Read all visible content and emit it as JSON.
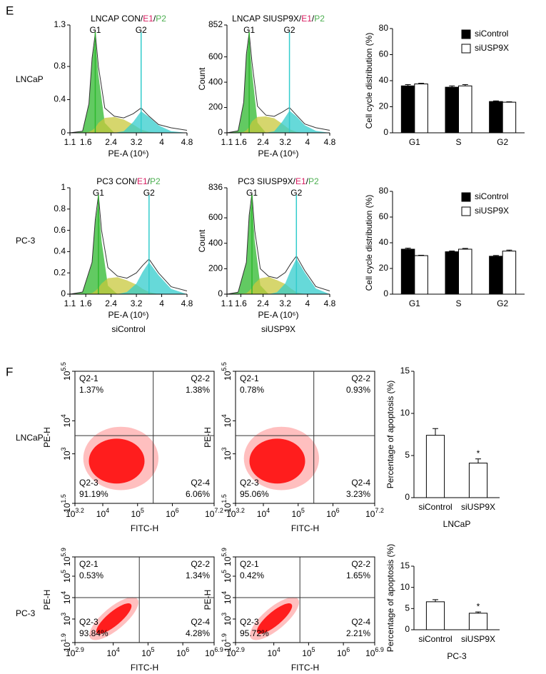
{
  "panel_labels": [
    "E",
    "F"
  ],
  "row_labels": [
    "LNCaP",
    "PC-3"
  ],
  "column_labels": [
    "siControl",
    "siUSP9X"
  ],
  "chart_data": [
    {
      "type": "area",
      "title_parts": [
        "LNCAP CON/",
        "E1",
        "/",
        "P2"
      ],
      "title_colors": [
        "#000000",
        "#d81b60",
        "#000000",
        "#4caf50"
      ],
      "xlabel": "PE-A (10⁶)",
      "xlim": [
        1.1,
        4.8
      ],
      "xticks": [
        1.1,
        1.6,
        2.4,
        3.2,
        4,
        4.8
      ],
      "ylim": [
        0,
        1.3
      ],
      "yticks": [
        0,
        0.4,
        0.8,
        1.3
      ],
      "x": [
        1.1,
        1.5,
        1.7,
        1.8,
        1.9,
        2.0,
        2.2,
        2.5,
        2.8,
        3.1,
        3.35,
        3.6,
        3.9,
        4.3,
        4.8
      ],
      "series": [
        {
          "color": "#2eb82e",
          "fill": true,
          "values": [
            0,
            0.02,
            0.34,
            0.88,
            1.15,
            0.7,
            0.12,
            0,
            0,
            0,
            0,
            0,
            0,
            0,
            0
          ]
        },
        {
          "color": "#c8c83c",
          "fill": true,
          "values": [
            0,
            0,
            0.01,
            0.03,
            0.06,
            0.12,
            0.18,
            0.19,
            0.16,
            0.1,
            0.04,
            0.01,
            0,
            0,
            0
          ]
        },
        {
          "color": "#33cccc",
          "fill": true,
          "values": [
            0,
            0,
            0,
            0,
            0,
            0,
            0,
            0,
            0.02,
            0.13,
            0.26,
            0.19,
            0.09,
            0.02,
            0
          ]
        },
        {
          "color": "#333333",
          "fill": false,
          "values": [
            0,
            0.02,
            0.35,
            0.9,
            1.2,
            0.8,
            0.3,
            0.2,
            0.18,
            0.23,
            0.3,
            0.2,
            0.1,
            0.06,
            0.03
          ]
        }
      ],
      "gates": [
        {
          "label": "G1",
          "x": 1.9,
          "color": "#2eb82e"
        },
        {
          "label": "G2",
          "x": 3.35,
          "color": "#33cccc"
        }
      ]
    },
    {
      "type": "area",
      "title_parts": [
        "LNCAP SIUSP9X/",
        "E1",
        "/",
        "P2"
      ],
      "title_colors": [
        "#000000",
        "#d81b60",
        "#000000",
        "#4caf50"
      ],
      "xlabel": "PE-A (10⁶)",
      "ylabel": "Count",
      "xlim": [
        1.1,
        4.8
      ],
      "xticks": [
        1.1,
        1.6,
        2.4,
        3.2,
        4,
        4.8
      ],
      "ylim": [
        0,
        852
      ],
      "yticks": [
        0,
        200,
        400,
        600,
        852
      ],
      "x": [
        1.1,
        1.5,
        1.7,
        1.8,
        1.9,
        2.0,
        2.2,
        2.5,
        2.8,
        3.1,
        3.35,
        3.6,
        3.9,
        4.3,
        4.8
      ],
      "series": [
        {
          "color": "#2eb82e",
          "fill": true,
          "values": [
            0,
            15,
            235,
            605,
            760,
            490,
            80,
            0,
            0,
            0,
            0,
            0,
            0,
            0,
            0
          ]
        },
        {
          "color": "#c8c83c",
          "fill": true,
          "values": [
            0,
            0,
            8,
            20,
            45,
            90,
            125,
            130,
            115,
            70,
            28,
            7,
            0,
            0,
            0
          ]
        },
        {
          "color": "#33cccc",
          "fill": true,
          "values": [
            0,
            0,
            0,
            0,
            0,
            0,
            0,
            0,
            12,
            90,
            175,
            130,
            60,
            15,
            0
          ]
        },
        {
          "color": "#333333",
          "fill": false,
          "values": [
            0,
            15,
            240,
            620,
            790,
            560,
            210,
            140,
            130,
            165,
            200,
            140,
            70,
            40,
            20
          ]
        }
      ],
      "gates": [
        {
          "label": "G1",
          "x": 1.9,
          "color": "#2eb82e"
        },
        {
          "label": "G2",
          "x": 3.35,
          "color": "#33cccc"
        }
      ]
    },
    {
      "type": "bar",
      "ylabel": "Cell cycle distribution (%)",
      "categories": [
        "G1",
        "S",
        "G2"
      ],
      "ylim": [
        0,
        80
      ],
      "yticks": [
        0,
        20,
        40,
        60,
        80
      ],
      "legend": "upper right",
      "series": [
        {
          "name": "siControl",
          "color": "#000000",
          "values": [
            36,
            35,
            24
          ],
          "errors": [
            1,
            1,
            0.5
          ]
        },
        {
          "name": "siUSP9X",
          "color": "#ffffff",
          "values": [
            37.5,
            36,
            23.5
          ],
          "errors": [
            0.5,
            1,
            0.3
          ]
        }
      ]
    },
    {
      "type": "area",
      "title_parts": [
        "PC3 CON/",
        "E1",
        "/",
        "P2"
      ],
      "title_colors": [
        "#000000",
        "#d81b60",
        "#000000",
        "#4caf50"
      ],
      "xlabel": "PE-A (10⁶)",
      "xlim": [
        1.1,
        4.8
      ],
      "xticks": [
        1.1,
        1.6,
        2.4,
        3.2,
        4,
        4.8
      ],
      "ylim": [
        0,
        1
      ],
      "yticks": [
        0,
        0.2,
        0.4,
        0.6,
        0.8,
        1
      ],
      "x": [
        1.1,
        1.5,
        1.8,
        1.9,
        2.0,
        2.1,
        2.3,
        2.6,
        2.9,
        3.2,
        3.4,
        3.6,
        3.9,
        4.3,
        4.8
      ],
      "series": [
        {
          "color": "#2eb82e",
          "fill": true,
          "values": [
            0,
            0.02,
            0.29,
            0.68,
            0.88,
            0.5,
            0.08,
            0,
            0,
            0,
            0,
            0,
            0,
            0,
            0
          ]
        },
        {
          "color": "#c8c83c",
          "fill": true,
          "values": [
            0,
            0,
            0.01,
            0.03,
            0.06,
            0.1,
            0.15,
            0.16,
            0.13,
            0.09,
            0.05,
            0.02,
            0,
            0,
            0
          ]
        },
        {
          "color": "#33cccc",
          "fill": true,
          "values": [
            0,
            0,
            0,
            0,
            0,
            0,
            0,
            0,
            0.02,
            0.1,
            0.21,
            0.3,
            0.18,
            0.05,
            0
          ]
        },
        {
          "color": "#333333",
          "fill": false,
          "values": [
            0,
            0.02,
            0.3,
            0.7,
            0.93,
            0.6,
            0.25,
            0.17,
            0.15,
            0.2,
            0.27,
            0.33,
            0.2,
            0.07,
            0.03
          ]
        }
      ],
      "gates": [
        {
          "label": "G1",
          "x": 2.0,
          "color": "#2eb82e"
        },
        {
          "label": "G2",
          "x": 3.6,
          "color": "#33cccc"
        }
      ]
    },
    {
      "type": "area",
      "title_parts": [
        "PC3 SIUSP9X/",
        "E1",
        "/",
        "P2"
      ],
      "title_colors": [
        "#000000",
        "#d81b60",
        "#000000",
        "#4caf50"
      ],
      "xlabel": "PE-A (10⁶)",
      "ylabel": "Count",
      "xlim": [
        1.1,
        4.8
      ],
      "xticks": [
        1.1,
        1.6,
        2.4,
        3.2,
        4,
        4.8
      ],
      "ylim": [
        0,
        836
      ],
      "yticks": [
        0,
        200,
        400,
        600,
        836
      ],
      "x": [
        1.1,
        1.5,
        1.8,
        1.9,
        2.0,
        2.1,
        2.3,
        2.6,
        2.9,
        3.2,
        3.4,
        3.6,
        3.9,
        4.3,
        4.8
      ],
      "series": [
        {
          "color": "#2eb82e",
          "fill": true,
          "values": [
            0,
            15,
            245,
            600,
            750,
            420,
            70,
            0,
            0,
            0,
            0,
            0,
            0,
            0,
            0
          ]
        },
        {
          "color": "#c8c83c",
          "fill": true,
          "values": [
            0,
            0,
            8,
            25,
            50,
            85,
            125,
            135,
            110,
            80,
            45,
            15,
            0,
            0,
            0
          ]
        },
        {
          "color": "#33cccc",
          "fill": true,
          "values": [
            0,
            0,
            0,
            0,
            0,
            0,
            0,
            0,
            15,
            85,
            190,
            280,
            170,
            45,
            0
          ]
        },
        {
          "color": "#333333",
          "fill": false,
          "values": [
            0,
            15,
            250,
            620,
            790,
            500,
            200,
            140,
            125,
            170,
            240,
            300,
            185,
            60,
            25
          ]
        }
      ],
      "gates": [
        {
          "label": "G1",
          "x": 2.0,
          "color": "#2eb82e"
        },
        {
          "label": "G2",
          "x": 3.6,
          "color": "#33cccc"
        }
      ]
    },
    {
      "type": "bar",
      "ylabel": "Cell cycle distribution (%)",
      "categories": [
        "G1",
        "S",
        "G2"
      ],
      "ylim": [
        0,
        80
      ],
      "yticks": [
        0,
        20,
        40,
        60,
        80
      ],
      "legend": "upper right",
      "series": [
        {
          "name": "siControl",
          "color": "#000000",
          "values": [
            35,
            33,
            29.5
          ],
          "errors": [
            0.8,
            0.6,
            0.6
          ]
        },
        {
          "name": "siUSP9X",
          "color": "#ffffff",
          "values": [
            30,
            35,
            33.5
          ],
          "errors": [
            0.3,
            0.6,
            0.8
          ]
        }
      ]
    },
    {
      "type": "scatter",
      "log_scale": true,
      "xlabel": "FITC-H",
      "ylabel": "PE-H",
      "color": "#ff0000",
      "xlim": [
        1585,
        15848932
      ],
      "xticks": [
        {
          "value": 1585,
          "label": "10",
          "exp": "3.2"
        },
        {
          "value": 10000,
          "label": "10",
          "exp": "4"
        },
        {
          "value": 100000,
          "label": "10",
          "exp": "5"
        },
        {
          "value": 1000000,
          "label": "10",
          "exp": "6"
        },
        {
          "value": 15848932,
          "label": "10",
          "exp": "7.2"
        }
      ],
      "ylim": [
        31.6,
        316228
      ],
      "yticks": [
        {
          "value": 31.6,
          "label": "10",
          "exp": "1.5"
        },
        {
          "value": 1000,
          "label": "10",
          "exp": "3"
        },
        {
          "value": 10000,
          "label": "10",
          "exp": "4"
        },
        {
          "value": 316228,
          "label": "10",
          "exp": "5.5"
        }
      ],
      "gate_x": 281838,
      "gate_y": 3548,
      "quadrants": [
        "Q2-1",
        "Q2-2",
        "Q2-3",
        "Q2-4"
      ],
      "values": [
        1.37,
        1.38,
        91.19,
        6.06
      ],
      "value_labels": [
        "1.37%",
        "1.38%",
        "91.19%",
        "6.06%"
      ]
    },
    {
      "type": "scatter",
      "log_scale": true,
      "xlabel": "FITC-H",
      "ylabel": "PE-H",
      "color": "#ff0000",
      "xlim": [
        1585,
        15848932
      ],
      "xticks": [
        {
          "value": 1585,
          "label": "10",
          "exp": "3.2"
        },
        {
          "value": 10000,
          "label": "10",
          "exp": "4"
        },
        {
          "value": 100000,
          "label": "10",
          "exp": "5"
        },
        {
          "value": 1000000,
          "label": "10",
          "exp": "6"
        },
        {
          "value": 15848932,
          "label": "10",
          "exp": "7.2"
        }
      ],
      "ylim": [
        31.6,
        316228
      ],
      "yticks": [
        {
          "value": 31.6,
          "label": "10",
          "exp": "1.5"
        },
        {
          "value": 1000,
          "label": "10",
          "exp": "3"
        },
        {
          "value": 10000,
          "label": "10",
          "exp": "4"
        },
        {
          "value": 316228,
          "label": "10",
          "exp": "5.5"
        }
      ],
      "gate_x": 281838,
      "gate_y": 3548,
      "quadrants": [
        "Q2-1",
        "Q2-2",
        "Q2-3",
        "Q2-4"
      ],
      "values": [
        0.78,
        0.93,
        95.06,
        3.23
      ],
      "value_labels": [
        "0.78%",
        "0.93%",
        "95.06%",
        "3.23%"
      ]
    },
    {
      "type": "bar",
      "ylabel": "Percentage of apoptosis (%)",
      "xlabel": "LNCaP",
      "categories": [
        "siControl",
        "siUSP9X"
      ],
      "ylim": [
        0,
        15
      ],
      "yticks": [
        0,
        5,
        10,
        15
      ],
      "color": "#ffffff",
      "values": [
        7.4,
        4.1
      ],
      "errors": [
        0.8,
        0.5
      ],
      "significance": [
        null,
        "*"
      ]
    },
    {
      "type": "scatter",
      "log_scale": true,
      "xlabel": "FITC-H",
      "ylabel": "PE-H",
      "color": "#ff0000",
      "xlim": [
        794,
        7943282
      ],
      "xticks": [
        {
          "value": 794,
          "label": "10",
          "exp": "2.9"
        },
        {
          "value": 10000,
          "label": "10",
          "exp": "4"
        },
        {
          "value": 100000,
          "label": "10",
          "exp": "5"
        },
        {
          "value": 1000000,
          "label": "10",
          "exp": "6"
        },
        {
          "value": 7943282,
          "label": "10",
          "exp": "6.9"
        }
      ],
      "ylim": [
        79.4,
        794328
      ],
      "yticks": [
        {
          "value": 79.4,
          "label": "10",
          "exp": "1.9"
        },
        {
          "value": 1000,
          "label": "10",
          "exp": "3"
        },
        {
          "value": 10000,
          "label": "10",
          "exp": "4"
        },
        {
          "value": 100000,
          "label": "10",
          "exp": "5"
        },
        {
          "value": 794328,
          "label": "10",
          "exp": "5.9"
        }
      ],
      "gate_x": 56234,
      "gate_y": 10000,
      "quadrants": [
        "Q2-1",
        "Q2-2",
        "Q2-3",
        "Q2-4"
      ],
      "values": [
        0.53,
        1.34,
        93.84,
        4.28
      ],
      "value_labels": [
        "0.53%",
        "1.34%",
        "93.84%",
        "4.28%"
      ]
    },
    {
      "type": "scatter",
      "log_scale": true,
      "xlabel": "FITC-H",
      "ylabel": "PE-H",
      "color": "#ff0000",
      "xlim": [
        794,
        7943282
      ],
      "xticks": [
        {
          "value": 794,
          "label": "10",
          "exp": "2.9"
        },
        {
          "value": 10000,
          "label": "10",
          "exp": "4"
        },
        {
          "value": 100000,
          "label": "10",
          "exp": "5"
        },
        {
          "value": 1000000,
          "label": "10",
          "exp": "6"
        },
        {
          "value": 7943282,
          "label": "10",
          "exp": "6.9"
        }
      ],
      "ylim": [
        79.4,
        794328
      ],
      "yticks": [
        {
          "value": 79.4,
          "label": "10",
          "exp": "1.9"
        },
        {
          "value": 1000,
          "label": "10",
          "exp": "3"
        },
        {
          "value": 10000,
          "label": "10",
          "exp": "4"
        },
        {
          "value": 100000,
          "label": "10",
          "exp": "5"
        },
        {
          "value": 794328,
          "label": "10",
          "exp": "5.9"
        }
      ],
      "gate_x": 56234,
      "gate_y": 10000,
      "quadrants": [
        "Q2-1",
        "Q2-2",
        "Q2-3",
        "Q2-4"
      ],
      "values": [
        0.42,
        1.65,
        95.72,
        2.21
      ],
      "value_labels": [
        "0.42%",
        "1.65%",
        "95.72%",
        "2.21%"
      ]
    },
    {
      "type": "bar",
      "ylabel": "Percentage of apoptosis (%)",
      "xlabel": "PC-3",
      "categories": [
        "siControl",
        "siUSP9X"
      ],
      "ylim": [
        0,
        15
      ],
      "yticks": [
        0,
        5,
        10,
        15
      ],
      "color": "#ffffff",
      "values": [
        6.6,
        3.9
      ],
      "errors": [
        0.5,
        0.3
      ],
      "significance": [
        null,
        "*"
      ]
    }
  ]
}
